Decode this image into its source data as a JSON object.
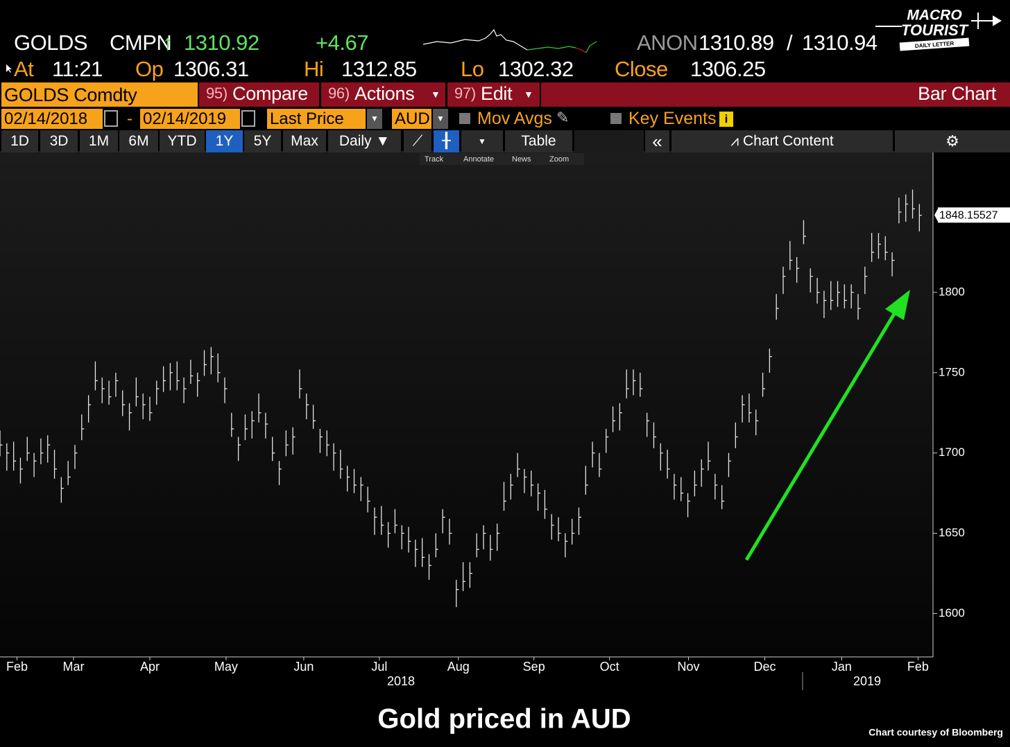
{
  "header": {
    "ticker": "GOLDS",
    "source": "CMPN",
    "last": "1310.92",
    "change": "+4.67",
    "anon": "ANON",
    "bid": "1310.89",
    "separator": "/",
    "ask": "1310.94",
    "at_label": "At",
    "time": "11:21",
    "open_label": "Op",
    "open": "1306.31",
    "high_label": "Hi",
    "high": "1312.85",
    "low_label": "Lo",
    "low": "1302.32",
    "close_label": "Close",
    "close": "1306.25"
  },
  "logo": {
    "line1": "MACRO",
    "line2": "TOURIST",
    "line3": "DAILY LETTER"
  },
  "toolbar": {
    "security": "GOLDS Comdty",
    "compare_num": "95)",
    "compare": "Compare",
    "actions_num": "96)",
    "actions": "Actions",
    "edit_num": "97)",
    "edit": "Edit",
    "chart_kind": "Bar Chart",
    "start_date": "02/14/2018",
    "dash": "-",
    "end_date": "02/14/2019",
    "field": "Last Price",
    "currency": "AUD",
    "mov_avgs": "Mov Avgs",
    "key_events": "Key Events",
    "periods": [
      "1D",
      "3D",
      "1M",
      "6M",
      "YTD",
      "1Y",
      "5Y",
      "Max"
    ],
    "frequency": "Daily ▼",
    "table": "Table",
    "chart_content": "Chart Content",
    "tools": [
      "Track",
      "Annotate",
      "News",
      "Zoom"
    ]
  },
  "chart_data": {
    "type": "ohlc",
    "color": "#e6e6e6",
    "xlim": [
      0,
      137
    ],
    "ylim": [
      1573,
      1888
    ],
    "xticks": [
      {
        "value": 2.5,
        "label": "Feb"
      },
      {
        "value": 10.8,
        "label": "Mar"
      },
      {
        "value": 22.0,
        "label": "Apr"
      },
      {
        "value": 33.2,
        "label": "May"
      },
      {
        "value": 44.6,
        "label": "Jun"
      },
      {
        "value": 55.7,
        "label": "Jul"
      },
      {
        "value": 67.3,
        "label": "Aug"
      },
      {
        "value": 78.4,
        "label": "Sep"
      },
      {
        "value": 89.5,
        "label": "Oct"
      },
      {
        "value": 101.1,
        "label": "Nov"
      },
      {
        "value": 112.3,
        "label": "Dec"
      },
      {
        "value": 123.6,
        "label": "Jan"
      },
      {
        "value": 134.8,
        "label": "Feb"
      }
    ],
    "years": [
      "2018",
      "2019"
    ],
    "yticks": [
      1600,
      1650,
      1700,
      1750,
      1800
    ],
    "last_price": 1848.15527,
    "high": [
      1714,
      1706,
      1707,
      1697,
      1710,
      1700,
      1709,
      1711,
      1702,
      1685,
      1695,
      1705,
      1724,
      1736,
      1757,
      1747,
      1745,
      1750,
      1739,
      1731,
      1747,
      1737,
      1735,
      1745,
      1754,
      1756,
      1757,
      1747,
      1758,
      1750,
      1764,
      1766,
      1762,
      1747,
      1725,
      1710,
      1724,
      1726,
      1737,
      1725,
      1710,
      1695,
      1714,
      1716,
      1752,
      1737,
      1730,
      1715,
      1714,
      1706,
      1702,
      1692,
      1690,
      1685,
      1679,
      1666,
      1667,
      1657,
      1665,
      1655,
      1654,
      1646,
      1647,
      1637,
      1650,
      1665,
      1659,
      1621,
      1632,
      1632,
      1650,
      1655,
      1649,
      1656,
      1682,
      1687,
      1700,
      1690,
      1689,
      1681,
      1677,
      1662,
      1660,
      1650,
      1659,
      1666,
      1692,
      1707,
      1700,
      1715,
      1729,
      1731,
      1752,
      1752,
      1750,
      1725,
      1719,
      1706,
      1702,
      1687,
      1685,
      1675,
      1689,
      1696,
      1707,
      1687,
      1680,
      1700,
      1719,
      1736,
      1737,
      1727,
      1750,
      1765,
      1799,
      1816,
      1832,
      1822,
      1845,
      1815,
      1809,
      1801,
      1807,
      1807,
      1805,
      1805,
      1799,
      1816,
      1837,
      1837,
      1835,
      1825,
      1859,
      1861,
      1864,
      1855
    ],
    "low": [
      1698,
      1689,
      1689,
      1681,
      1695,
      1685,
      1693,
      1694,
      1684,
      1669,
      1680,
      1690,
      1708,
      1719,
      1739,
      1731,
      1730,
      1735,
      1723,
      1714,
      1729,
      1721,
      1720,
      1730,
      1738,
      1739,
      1739,
      1731,
      1743,
      1735,
      1748,
      1749,
      1744,
      1731,
      1710,
      1695,
      1708,
      1709,
      1719,
      1709,
      1695,
      1680,
      1698,
      1699,
      1734,
      1721,
      1715,
      1700,
      1698,
      1689,
      1684,
      1676,
      1675,
      1670,
      1663,
      1649,
      1649,
      1641,
      1650,
      1640,
      1638,
      1629,
      1629,
      1621,
      1635,
      1650,
      1643,
      1604,
      1614,
      1616,
      1635,
      1640,
      1633,
      1639,
      1664,
      1671,
      1685,
      1675,
      1673,
      1664,
      1659,
      1646,
      1645,
      1635,
      1643,
      1649,
      1674,
      1691,
      1685,
      1700,
      1713,
      1714,
      1734,
      1736,
      1735,
      1710,
      1703,
      1689,
      1684,
      1671,
      1670,
      1660,
      1673,
      1679,
      1689,
      1671,
      1665,
      1685,
      1703,
      1719,
      1719,
      1711,
      1735,
      1750,
      1783,
      1799,
      1814,
      1806,
      1830,
      1800,
      1793,
      1784,
      1789,
      1791,
      1790,
      1790,
      1783,
      1799,
      1819,
      1821,
      1820,
      1810,
      1843,
      1844,
      1846,
      1838
    ],
    "close": [
      1705,
      1700,
      1695,
      1690,
      1700,
      1695,
      1700,
      1705,
      1690,
      1678,
      1685,
      1700,
      1715,
      1730,
      1745,
      1740,
      1735,
      1745,
      1730,
      1725,
      1735,
      1730,
      1725,
      1740,
      1745,
      1750,
      1745,
      1740,
      1748,
      1745,
      1755,
      1760,
      1750,
      1740,
      1715,
      1705,
      1715,
      1720,
      1725,
      1718,
      1700,
      1690,
      1705,
      1710,
      1740,
      1730,
      1720,
      1710,
      1705,
      1700,
      1690,
      1685,
      1680,
      1680,
      1670,
      1660,
      1655,
      1650,
      1655,
      1650,
      1645,
      1640,
      1635,
      1630,
      1640,
      1660,
      1650,
      1615,
      1620,
      1625,
      1640,
      1650,
      1640,
      1650,
      1670,
      1680,
      1690,
      1685,
      1680,
      1675,
      1665,
      1655,
      1650,
      1645,
      1650,
      1660,
      1680,
      1700,
      1690,
      1710,
      1720,
      1725,
      1740,
      1745,
      1740,
      1720,
      1710,
      1700,
      1690,
      1680,
      1675,
      1670,
      1680,
      1690,
      1695,
      1680,
      1670,
      1695,
      1710,
      1730,
      1725,
      1720,
      1740,
      1760,
      1790,
      1810,
      1820,
      1815,
      1835,
      1810,
      1800,
      1795,
      1795,
      1800,
      1795,
      1800,
      1790,
      1810,
      1825,
      1830,
      1825,
      1820,
      1850,
      1855,
      1852,
      1848
    ]
  },
  "footer": {
    "title": "Gold priced in AUD",
    "credit": "Chart courtesy of Bloomberg"
  }
}
